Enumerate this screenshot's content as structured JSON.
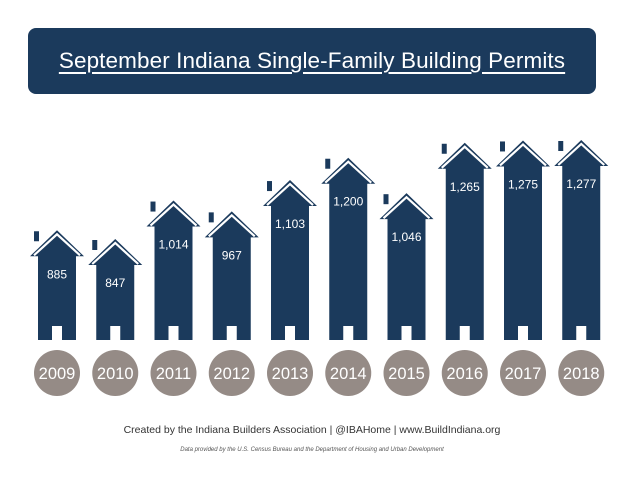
{
  "colors": {
    "house": "#1b3a5c",
    "house_stroke": "#ffffff",
    "year_circle": "#958b86",
    "banner": "#1b3a5c"
  },
  "footer": {
    "credit": "Created by the Indiana Builders Association | @IBAHome | www.BuildIndiana.org",
    "source": "Data provided by the U.S. Census Bureau and the Department of Housing and Urban Development"
  },
  "chart_data": {
    "type": "bar",
    "title": "September Indiana Single-Family Building Permits",
    "categories": [
      "2009",
      "2010",
      "2011",
      "2012",
      "2013",
      "2014",
      "2015",
      "2016",
      "2017",
      "2018"
    ],
    "values": [
      885,
      847,
      1014,
      967,
      1103,
      1200,
      1046,
      1265,
      1275,
      1277
    ],
    "labels": [
      "885",
      "847",
      "1,014",
      "967",
      "1,103",
      "1,200",
      "1,046",
      "1,265",
      "1,275",
      "1,277"
    ],
    "xlabel": "",
    "ylabel": "",
    "ylim": [
      0,
      1277
    ],
    "mark": "house-shaped bars",
    "grid": false
  }
}
